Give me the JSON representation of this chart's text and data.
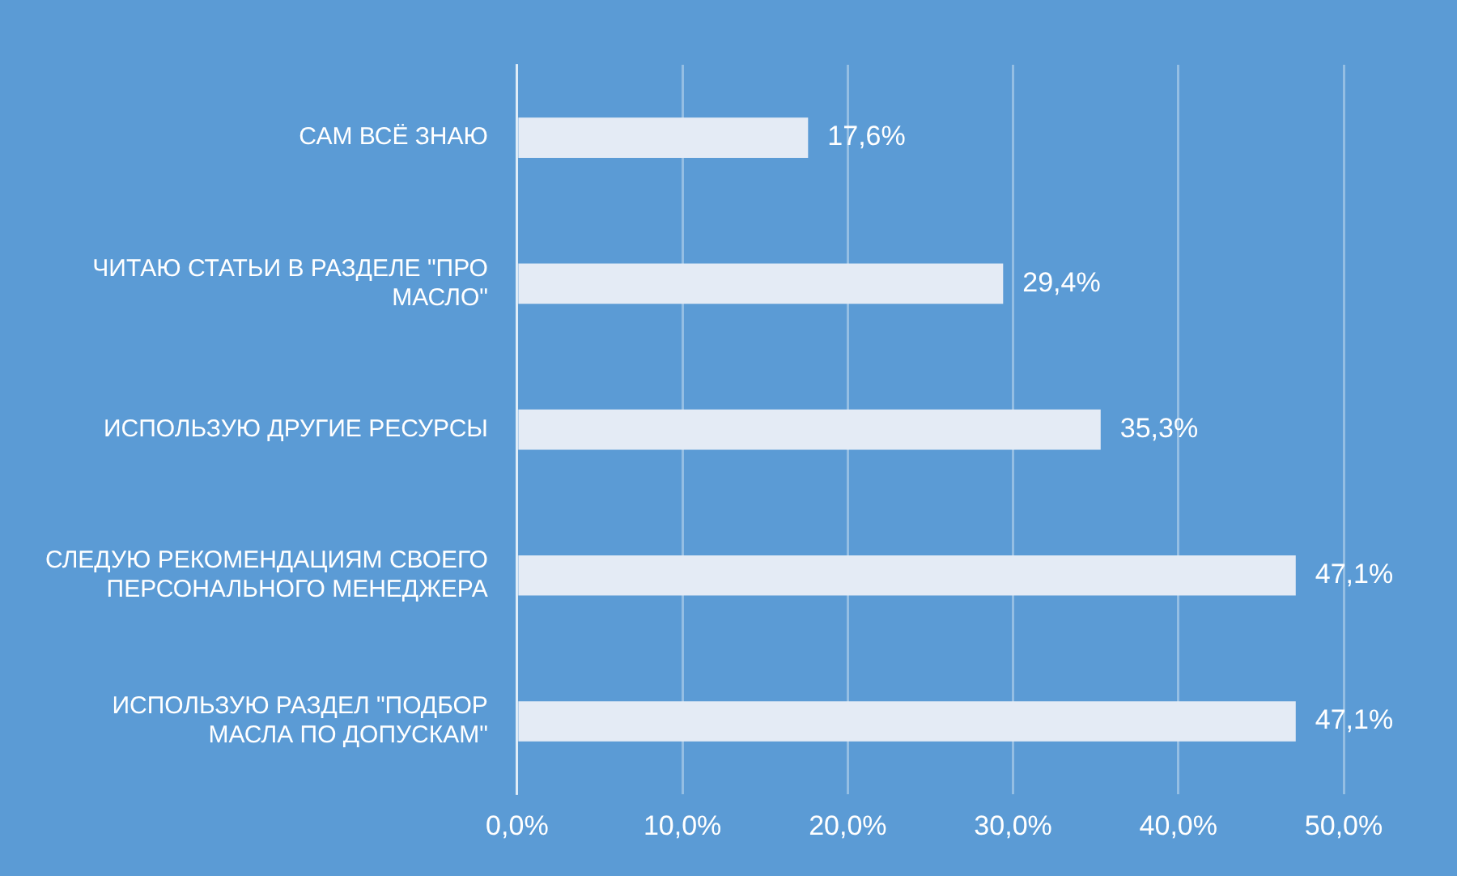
{
  "chart_data": {
    "type": "bar",
    "orientation": "horizontal",
    "categories": [
      "САМ ВСЁ ЗНАЮ",
      "ЧИТАЮ СТАТЬИ В РАЗДЕЛЕ \"ПРО МАСЛО\"",
      "ИСПОЛЬЗУЮ ДРУГИЕ РЕСУРСЫ",
      "СЛЕДУЮ РЕКОМЕНДАЦИЯМ СВОЕГО ПЕРСОНАЛЬНОГО МЕНЕДЖЕРА",
      "ИСПОЛЬЗУЮ РАЗДЕЛ \"ПОДБОР МАСЛА ПО ДОПУСКАМ\""
    ],
    "values": [
      17.6,
      29.4,
      35.3,
      47.1,
      47.1
    ],
    "value_labels": [
      "17,6%",
      "29,4%",
      "35,3%",
      "47,1%",
      "47,1%"
    ],
    "color": "#e4ebf5",
    "xlim": [
      0,
      50
    ],
    "xticks": [
      {
        "value": 0,
        "label": "0,0%"
      },
      {
        "value": 10,
        "label": "10,0%"
      },
      {
        "value": 20,
        "label": "20,0%"
      },
      {
        "value": 30,
        "label": "30,0%"
      },
      {
        "value": 40,
        "label": "40,0%"
      },
      {
        "value": 50,
        "label": "50,0%"
      }
    ],
    "grid": "x",
    "legend": false
  }
}
